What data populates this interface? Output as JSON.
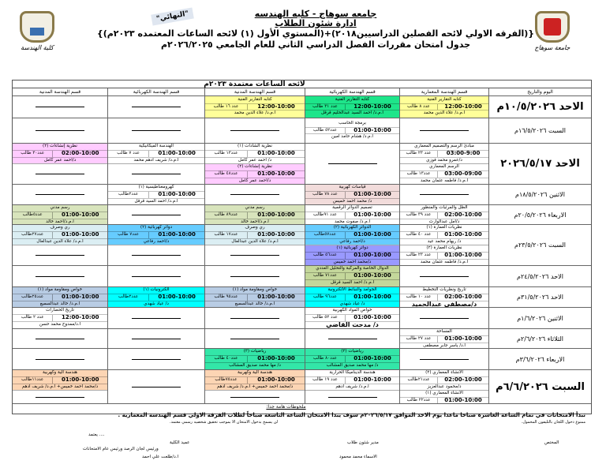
{
  "header": {
    "university": "جامعه سوهاج - كليه الهندسه",
    "department": "ادارة شئون الطلاب",
    "program": "{(الفرقه الاولي لائحه الفصلين الدراسيين٢٠١٨)+(المستوي الأول (١) لائحه الساعات المعتمده ٢٠٢٣م)}",
    "schedule_title": "جدول امتحان مقررات الفصل الدراسي الثاني للعام الجامعي ٢٠٢٦/٢٠٢٥م",
    "stamp": "\"النهائي\"",
    "logo_left_caption": "كلية الهندسة",
    "logo_right_caption": "جامعة سوهاج"
  },
  "table": {
    "caption": "لائحه الساعات معتمدة ٢٠٢٣م",
    "columns": [
      "اليوم والتاريخ",
      "قسم الهندسة المعمارية",
      "قسم الهندسة الكهربائية",
      "قسم الهندسة المدنية",
      "قسم الهندسة الكهربائية",
      "قسم الهندسة المدنية"
    ],
    "colors": {
      "yellow": "#ffff99",
      "green": "#1ee58a",
      "pink": "#ffccff",
      "rose": "#f2dcdb",
      "olive": "#d8e4bc",
      "olive2": "#c4d79b",
      "blue": "#66ccff",
      "lightblue": "#dbeef3",
      "purple": "#9999ff",
      "cyan": "#00ffff",
      "steel": "#b8cce4",
      "teal": "#33e6a8",
      "orange": "#fcd5b4",
      "white": "#ffffff"
    },
    "rows": [
      {
        "date": "الاحد ١٠/٥/٢٠٢٦م",
        "big": true,
        "cells": [
          [
            {
              "course": "كتابه التقارير الفنية",
              "time": "12:00-10:00",
              "count": "عدد ٨ طالب",
              "instructor": "أ.م.د/ علاء الدين محمد",
              "color": "yellow"
            }
          ],
          [
            {
              "course": "كتابه التقارير الفنية",
              "time": "12:00-10:00",
              "count": "عدد ٣١ طالب",
              "instructor": "أ.م.د/ أحمد السيد عبدالحليم قرقل",
              "color": "green"
            }
          ],
          [
            {
              "course": "كتابه التقارير الفنية",
              "time": "12:00-10:00",
              "count": "عدد ١٦ طالب",
              "instructor": "أ.م.د/ علاء الدين محمد",
              "color": "yellow"
            }
          ],
          [
            null
          ],
          [
            null
          ]
        ]
      },
      {
        "date": "السبت ١٦/٥/٢٠٢٦م",
        "big": false,
        "cells": [
          [
            null
          ],
          [
            {
              "course": "برمجة الحاسب",
              "time": "01:00-10:00",
              "count": "عدد٥٢ طالب",
              "instructor": "أ.م.د/ هشام حامد أمين",
              "color": "white"
            }
          ],
          [
            null
          ],
          [
            null
          ],
          [
            null
          ]
        ]
      },
      {
        "date": "الاحد ٢٠٢٦/٥/١٧",
        "big": true,
        "cells": [
          [
            {
              "course": "مبادئ الرسم والتصميم المعماري",
              "time": "03:00-9:00",
              "count": "عدد ٢٣ طالب",
              "instructor": "د/عمرو محمد فوزي",
              "color": "white"
            },
            {
              "course": "الرسم المعماري",
              "time": "03:00-09:00",
              "count": "عدد١٣ طالب",
              "instructor": "أ.م.د/ فاطمه عثمان محمد",
              "color": "white"
            }
          ],
          [
            null
          ],
          [
            {
              "course": "نظرية الشادات (١)",
              "time": "01:00-10:00",
              "count": "عدد١٣ طالب",
              "instructor": "د/ أحمد عمر كامل",
              "color": "white"
            },
            {
              "course": "نظرية إنشاءات (٢)",
              "time": "01:00-10:00",
              "count": "عدد٤٨ طالب",
              "instructor": "د/أحمد عمر كامل",
              "color": "pink"
            }
          ],
          [
            {
              "course": "الهندسة الميكانيكية",
              "time": "01:00-10:00",
              "count": "عدد ٧ طالب",
              "instructor": "أ.م.د/ شريف أدهم محمد",
              "color": "white"
            },
            null
          ],
          [
            {
              "course": "نظرية إنشاءات (٢)",
              "time": "02:00-10:00",
              "count": "عدد٣٠ طالب",
              "instructor": "د/أحمد عمر كامل",
              "color": "pink"
            },
            null
          ]
        ]
      },
      {
        "date": "الاثنين ١٨/٥/٢٠٢٦م",
        "big": false,
        "cells": [
          [
            null
          ],
          [
            {
              "course": "قياسات كهربية",
              "time": "01:00-10:00",
              "count": "عدد ٧٨ طالب",
              "instructor": "د/ محمد أحمد خميس",
              "color": "rose"
            }
          ],
          [
            null
          ],
          [
            {
              "course": "كهرومغناطيسية (١)",
              "time": "01:00-10:00",
              "count": "عدد٢طالب",
              "instructor": "أ.م.د/ أحمد السيد قرقل",
              "color": "white"
            }
          ],
          [
            null
          ]
        ]
      },
      {
        "date": "الاربعاء ٢٠/٥/٢٠٢٦م",
        "big": false,
        "cells": [
          [
            {
              "course": "الظل والمرئيات والمنظور",
              "time": "02:00-10:00",
              "count": "عدد ٣٩ طالب",
              "instructor": "د/أمل عبدالوارث",
              "color": "white"
            }
          ],
          [
            {
              "course": "تصميم الدوائر الرقمية",
              "time": "01:00-10:00",
              "count": "عدد ٩١طالب",
              "instructor": "أ.م.د/ صفوت محمد",
              "color": "white"
            }
          ],
          [
            {
              "course": "رسم مدني",
              "time": "01:00-10:00",
              "count": "عدد٨٩ طالب",
              "instructor": "أ.م.د/أحمد خالد",
              "color": "olive"
            }
          ],
          [
            null
          ],
          [
            {
              "course": "رسم مدني",
              "time": "01:00-10:00",
              "count": "عدد٥طالب",
              "instructor": "أ.م.د/أحمد خالد",
              "color": "olive"
            }
          ]
        ]
      },
      {
        "date": "السبت ٢٣/٥/٢٠٢٦م",
        "big": false,
        "cells": [
          [
            {
              "course": "نظريات العمارة (١)",
              "time": "01:00-10:00",
              "count": "عدد ٤٠ طالب",
              "instructor": "د/ ريهام محمد عيد",
              "color": "white"
            },
            {
              "course": "نظريات العمارة (٢)",
              "time": "01:00-10:00",
              "count": "عدد ٢٣ طالب",
              "instructor": "أ.م.د/ فاطمه عثمان محمد",
              "color": "white"
            }
          ],
          [
            {
              "course": "الدوائر الكهربائية (٢)",
              "time": "01:00-10:00",
              "count": "عدد٥٧طالب",
              "instructor": "د/أحمد رفاعي",
              "color": "blue"
            },
            {
              "course": "دوائر كهربائية (١)",
              "time": "01:00-10:00",
              "count": "عدد٥٦ طالب",
              "instructor": "د/محمد أحمد خميس",
              "color": "purple"
            }
          ],
          [
            {
              "course": "ري وصرف",
              "time": "01:00-10:00",
              "count": "عدد١٧ طالب",
              "instructor": "أ.م.د/ علاء الدين عبدالعال",
              "color": "lightblue"
            },
            null
          ],
          [
            {
              "course": "دوائر كهربائية (٢)",
              "time": "01:00-10:00",
              "count": "عدد٧ طالب",
              "instructor": "د/أحمد رفاعي",
              "color": "blue"
            },
            null
          ],
          [
            {
              "course": "ري وصرف",
              "time": "01:00-10:00",
              "count": "عدد٢٧طالب",
              "instructor": "أ.م.د/ علاء الدين عبدالعال",
              "color": "lightblue"
            },
            null
          ]
        ]
      },
      {
        "date": "الاحد ٢٤/٥/٢٠٢٦م",
        "big": false,
        "cells": [
          [
            null
          ],
          [
            {
              "course": "الدوال الخاصة والمركبة والتحليل العددي",
              "time": "01:00-10:00",
              "count": "عدد٧١ طالب",
              "instructor": "أ.م.د/ أحمد السيد قرقل",
              "color": "olive2"
            }
          ],
          [
            null
          ],
          [
            null
          ],
          [
            null
          ]
        ]
      },
      {
        "date": "الاحد ٣١/٥/٢٠٢٦م",
        "big": false,
        "cells": [
          [
            {
              "course": "تاريخ ونظريات التخطيط",
              "time": "02:00-10:00",
              "count": "عدد ١٠ طالب",
              "instructor": "د/مصطفي عبدالحميد",
              "color": "white",
              "bold_instructor": true
            }
          ],
          [
            {
              "course": "الجوامد والنبائط الالكترونية",
              "time": "01:00-10:00",
              "count": "عدد٩٦ طالب",
              "instructor": "د/ عياد شهدي",
              "color": "cyan"
            }
          ],
          [
            {
              "course": "خواص ومقاومة مواد (١)",
              "time": "01:00-10:00",
              "count": "عدد٩٥ طالب",
              "instructor": "أ.م.د/ خالد عبدالسميع",
              "color": "steel"
            }
          ],
          [
            {
              "course": "الكترونيات (١)",
              "time": "01:00-10:00",
              "count": "عدد٢طالب",
              "instructor": "د/ عياد شهدي",
              "color": "cyan"
            }
          ],
          [
            {
              "course": "خواص ومقاومة مواد (١)",
              "time": "01:00-10:00",
              "count": "عدد٢٥طالب",
              "instructor": "أ.م.د/ خالد عبدالسميع",
              "color": "steel"
            }
          ]
        ]
      },
      {
        "date": "الاثنين ١/٦/٢٠٢٦م",
        "big": false,
        "cells": [
          [
            null
          ],
          [
            {
              "course": "خواص المواد الكهربية",
              "time": "01:00-10:00",
              "count": "عدد ٥٢ طالب",
              "instructor": "د/ مدحت القاضي",
              "color": "white",
              "bold_instructor": true
            }
          ],
          [
            null
          ],
          [
            null
          ],
          [
            {
              "course": "تاريخ الحضارات",
              "time": "12:00-10:00",
              "count": "عدد ٢ طالب",
              "instructor": "أ.د/ممدوح محمد حسن",
              "color": "white"
            }
          ]
        ]
      },
      {
        "date": "الثلاثاء ٢/٦/٢٠٢٦م",
        "big": false,
        "cells": [
          [
            {
              "course": "المساحة",
              "time": "01:00-10:00",
              "count": "عدد ٢٧ طالب",
              "instructor": "أ.د/ ياسر جابر مصطفى",
              "color": "white"
            }
          ],
          [
            null
          ],
          [
            null
          ],
          [
            null
          ],
          [
            null
          ]
        ]
      },
      {
        "date": "الاربعاء ٣/٦/٢٠٢٦م",
        "big": false,
        "cells": [
          [
            null
          ],
          [
            {
              "course": "رياضيات (٣)",
              "time": "01:00-10:00",
              "count": "عدد٨٠ طالب",
              "instructor": "د/ مها محمد صديق المشالب",
              "color": "teal"
            }
          ],
          [
            {
              "course": "رياضيات (٣)",
              "time": "01:00-10:00",
              "count": "عدد٤٠ طالب",
              "instructor": "د/ مها محمد صديق المشالب",
              "color": "teal"
            }
          ],
          [
            null
          ],
          [
            null
          ]
        ]
      },
      {
        "date": "السبت ٦/٦/٢٠٢٦م",
        "big": true,
        "cells": [
          [
            {
              "course": "الانشاء المعماري (٢)",
              "time": "02:00-10:00",
              "count": "عدد٢١طالب",
              "instructor": "د/محمود عبدالعزيز",
              "color": "white"
            },
            {
              "course": "الانشاء المعماري (١)",
              "time": "01:00-10:00",
              "count": "عدد٢٢ طالب",
              "instructor": "د/ محمود عبدالعزيز",
              "color": "white"
            }
          ],
          [
            {
              "course": "هندسة الديناميكا الحرارية",
              "time": "01:00-10:00",
              "count": "عدد ١٩ طالب",
              "instructor": "أ.م.د/ شريف أدهم",
              "color": "white"
            },
            null
          ],
          [
            {
              "course": "هندسة الية وكهربية",
              "time": "01:00-10:00",
              "count": "عدد٧٥طالب",
              "instructor": "د/محمد أحمد خميس+ أ.م.د/ شريف أدهم",
              "color": "orange"
            },
            null
          ],
          [
            null
          ],
          [
            {
              "course": "هندسة الية وكهربية",
              "time": "01:00-10:00",
              "count": "عدد١١طالب",
              "instructor": "د/محمد أحمد خميس+ أ.م.د/ شريف أدهم",
              "color": "orange"
            },
            null
          ]
        ]
      }
    ],
    "notes_label": "ملحوظات هامة جدا:"
  },
  "footer": {
    "announcement": "تبدأ الامتحانات في تمام الساعة العاشرة صباحا ماعدا يوم الاحد الموافق ٢٠٢٦/٥/١٧م سوف يبدا الامتحان الساعة التاسعة صباحاً لطلاب الفرقة الاولي قسم الهندسة المعمارية .",
    "rule_phones": "ممنوع دخول اللجان بالتليفون المحمول.",
    "rule_id": "لن يسمح بدخول الامتحان الا بموجب تحقيق شخصيه رسمي معتمد.",
    "approved": "يعتمد ....",
    "reviewer": "المختص",
    "affairs_manager": "مدير شئون طلاب",
    "affairs_manager_name": "الاسماء محمد محمود",
    "dean": "عميد الكلية",
    "dean_title": "ورئيس لجان الرصد ورئيس عام الامتحانات",
    "dean_name": "ا.د/طلعت علي احمد"
  }
}
